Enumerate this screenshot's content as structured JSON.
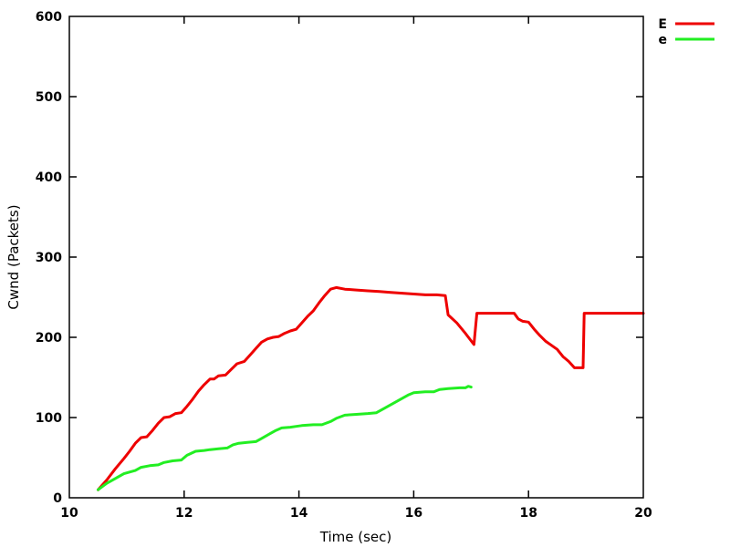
{
  "chart_data": {
    "type": "line",
    "title": "",
    "xlabel": "Time (sec)",
    "ylabel": "Cwnd (Packets)",
    "xlim": [
      10,
      20
    ],
    "ylim": [
      0,
      600
    ],
    "xticks": [
      10,
      12,
      14,
      16,
      18,
      20
    ],
    "yticks": [
      0,
      100,
      200,
      300,
      400,
      500,
      600
    ],
    "grid": false,
    "legend": "top-right-outside",
    "series": [
      {
        "name": "E",
        "color": "#ee0000",
        "points": [
          [
            10.5,
            10
          ],
          [
            10.65,
            22
          ],
          [
            10.8,
            36
          ],
          [
            10.95,
            49
          ],
          [
            11.05,
            58
          ],
          [
            11.15,
            68
          ],
          [
            11.25,
            75
          ],
          [
            11.35,
            76
          ],
          [
            11.45,
            84
          ],
          [
            11.55,
            93
          ],
          [
            11.65,
            100
          ],
          [
            11.75,
            101
          ],
          [
            11.85,
            105
          ],
          [
            11.95,
            106
          ],
          [
            12.05,
            114
          ],
          [
            12.15,
            123
          ],
          [
            12.25,
            133
          ],
          [
            12.35,
            141
          ],
          [
            12.45,
            148
          ],
          [
            12.52,
            148
          ],
          [
            12.6,
            152
          ],
          [
            12.72,
            153
          ],
          [
            12.82,
            160
          ],
          [
            12.92,
            167
          ],
          [
            13.05,
            170
          ],
          [
            13.15,
            178
          ],
          [
            13.25,
            186
          ],
          [
            13.35,
            194
          ],
          [
            13.45,
            198
          ],
          [
            13.55,
            200
          ],
          [
            13.65,
            201
          ],
          [
            13.75,
            205
          ],
          [
            13.85,
            208
          ],
          [
            13.95,
            210
          ],
          [
            14.05,
            218
          ],
          [
            14.15,
            226
          ],
          [
            14.25,
            233
          ],
          [
            14.35,
            243
          ],
          [
            14.45,
            252
          ],
          [
            14.55,
            260
          ],
          [
            14.65,
            262
          ],
          [
            14.8,
            260
          ],
          [
            15.0,
            259
          ],
          [
            15.2,
            258
          ],
          [
            15.4,
            257
          ],
          [
            15.6,
            256
          ],
          [
            15.8,
            255
          ],
          [
            16.0,
            254
          ],
          [
            16.2,
            253
          ],
          [
            16.4,
            253
          ],
          [
            16.55,
            252
          ],
          [
            16.6,
            228
          ],
          [
            16.75,
            218
          ],
          [
            16.9,
            205
          ],
          [
            17.05,
            191
          ],
          [
            17.1,
            230
          ],
          [
            17.3,
            230
          ],
          [
            17.5,
            230
          ],
          [
            17.75,
            230
          ],
          [
            17.82,
            223
          ],
          [
            17.9,
            220
          ],
          [
            18.0,
            219
          ],
          [
            18.1,
            210
          ],
          [
            18.2,
            202
          ],
          [
            18.3,
            195
          ],
          [
            18.4,
            190
          ],
          [
            18.5,
            185
          ],
          [
            18.6,
            176
          ],
          [
            18.7,
            170
          ],
          [
            18.8,
            162
          ],
          [
            18.95,
            162
          ],
          [
            18.97,
            230
          ],
          [
            19.3,
            230
          ],
          [
            19.6,
            230
          ],
          [
            20.0,
            230
          ]
        ]
      },
      {
        "name": "e",
        "color": "#22ee22",
        "points": [
          [
            10.5,
            10
          ],
          [
            10.65,
            18
          ],
          [
            10.8,
            24
          ],
          [
            10.95,
            30
          ],
          [
            11.05,
            32
          ],
          [
            11.15,
            34
          ],
          [
            11.25,
            38
          ],
          [
            11.4,
            40
          ],
          [
            11.55,
            41
          ],
          [
            11.65,
            44
          ],
          [
            11.8,
            46
          ],
          [
            11.95,
            47
          ],
          [
            12.05,
            53
          ],
          [
            12.2,
            58
          ],
          [
            12.35,
            59
          ],
          [
            12.45,
            60
          ],
          [
            12.6,
            61
          ],
          [
            12.75,
            62
          ],
          [
            12.85,
            66
          ],
          [
            12.95,
            68
          ],
          [
            13.1,
            69
          ],
          [
            13.25,
            70
          ],
          [
            13.35,
            74
          ],
          [
            13.5,
            80
          ],
          [
            13.6,
            84
          ],
          [
            13.7,
            87
          ],
          [
            13.85,
            88
          ],
          [
            13.95,
            89
          ],
          [
            14.05,
            90
          ],
          [
            14.25,
            91
          ],
          [
            14.4,
            91
          ],
          [
            14.55,
            95
          ],
          [
            14.65,
            99
          ],
          [
            14.8,
            103
          ],
          [
            15.0,
            104
          ],
          [
            15.2,
            105
          ],
          [
            15.35,
            106
          ],
          [
            15.5,
            112
          ],
          [
            15.65,
            118
          ],
          [
            15.8,
            124
          ],
          [
            15.9,
            128
          ],
          [
            16.0,
            131
          ],
          [
            16.2,
            132
          ],
          [
            16.35,
            132
          ],
          [
            16.45,
            135
          ],
          [
            16.6,
            136
          ],
          [
            16.8,
            137
          ],
          [
            16.9,
            137
          ],
          [
            16.95,
            139
          ],
          [
            17.0,
            138
          ]
        ]
      }
    ]
  }
}
